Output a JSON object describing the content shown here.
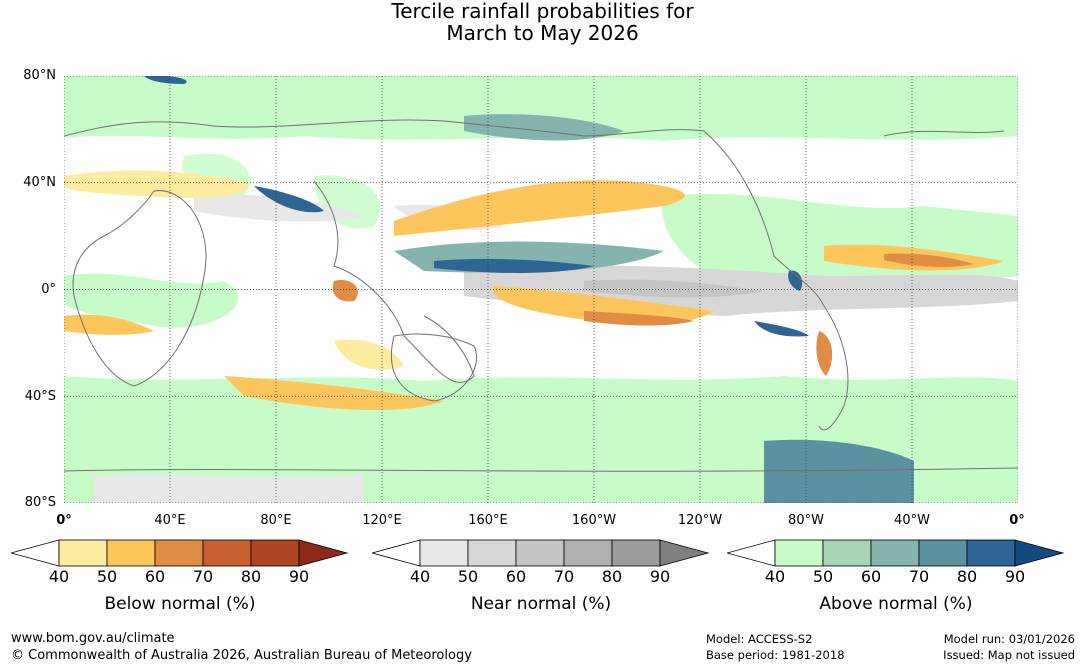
{
  "title": {
    "line1": "Tercile rainfall probabilities for",
    "line2": "March to May 2026"
  },
  "map": {
    "lat_labels": [
      "80°N",
      "40°N",
      "0°",
      "40°S",
      "80°S"
    ],
    "lon_labels": [
      "0°",
      "40°E",
      "80°E",
      "120°E",
      "160°E",
      "160°W",
      "120°W",
      "80°W",
      "40°W",
      "0°"
    ],
    "colors": {
      "ocean_base": "#ffffff",
      "coast": "#707070",
      "grid": "#333333"
    }
  },
  "legends": [
    {
      "label": "Below normal (%)",
      "ticks": [
        "40",
        "50",
        "60",
        "70",
        "80",
        "90"
      ],
      "colors": [
        "#ffffff",
        "#fdeca0",
        "#fdc65d",
        "#e08c45",
        "#c95f30",
        "#ad4523",
        "#8e2a1a"
      ]
    },
    {
      "label": "Near normal (%)",
      "ticks": [
        "40",
        "50",
        "60",
        "70",
        "80",
        "90"
      ],
      "colors": [
        "#ffffff",
        "#e8e8e8",
        "#d7d7d7",
        "#c5c5c5",
        "#b0b0b0",
        "#9c9c9c",
        "#808080"
      ]
    },
    {
      "label": "Above normal (%)",
      "ticks": [
        "40",
        "50",
        "60",
        "70",
        "80",
        "90"
      ],
      "colors": [
        "#ffffff",
        "#c7fcc8",
        "#a7d6b4",
        "#85b3ad",
        "#5c91a0",
        "#2f6494",
        "#154a80"
      ]
    }
  ],
  "footer": {
    "url": "www.bom.gov.au/climate",
    "copyright": "© Commonwealth of Australia 2026, Australian Bureau of Meteorology",
    "model": "Model: ACCESS-S2",
    "base_period": "Base period: 1981-2018",
    "model_run": "Model run: 03/01/2026",
    "issued": "Issued: Map not issued"
  }
}
